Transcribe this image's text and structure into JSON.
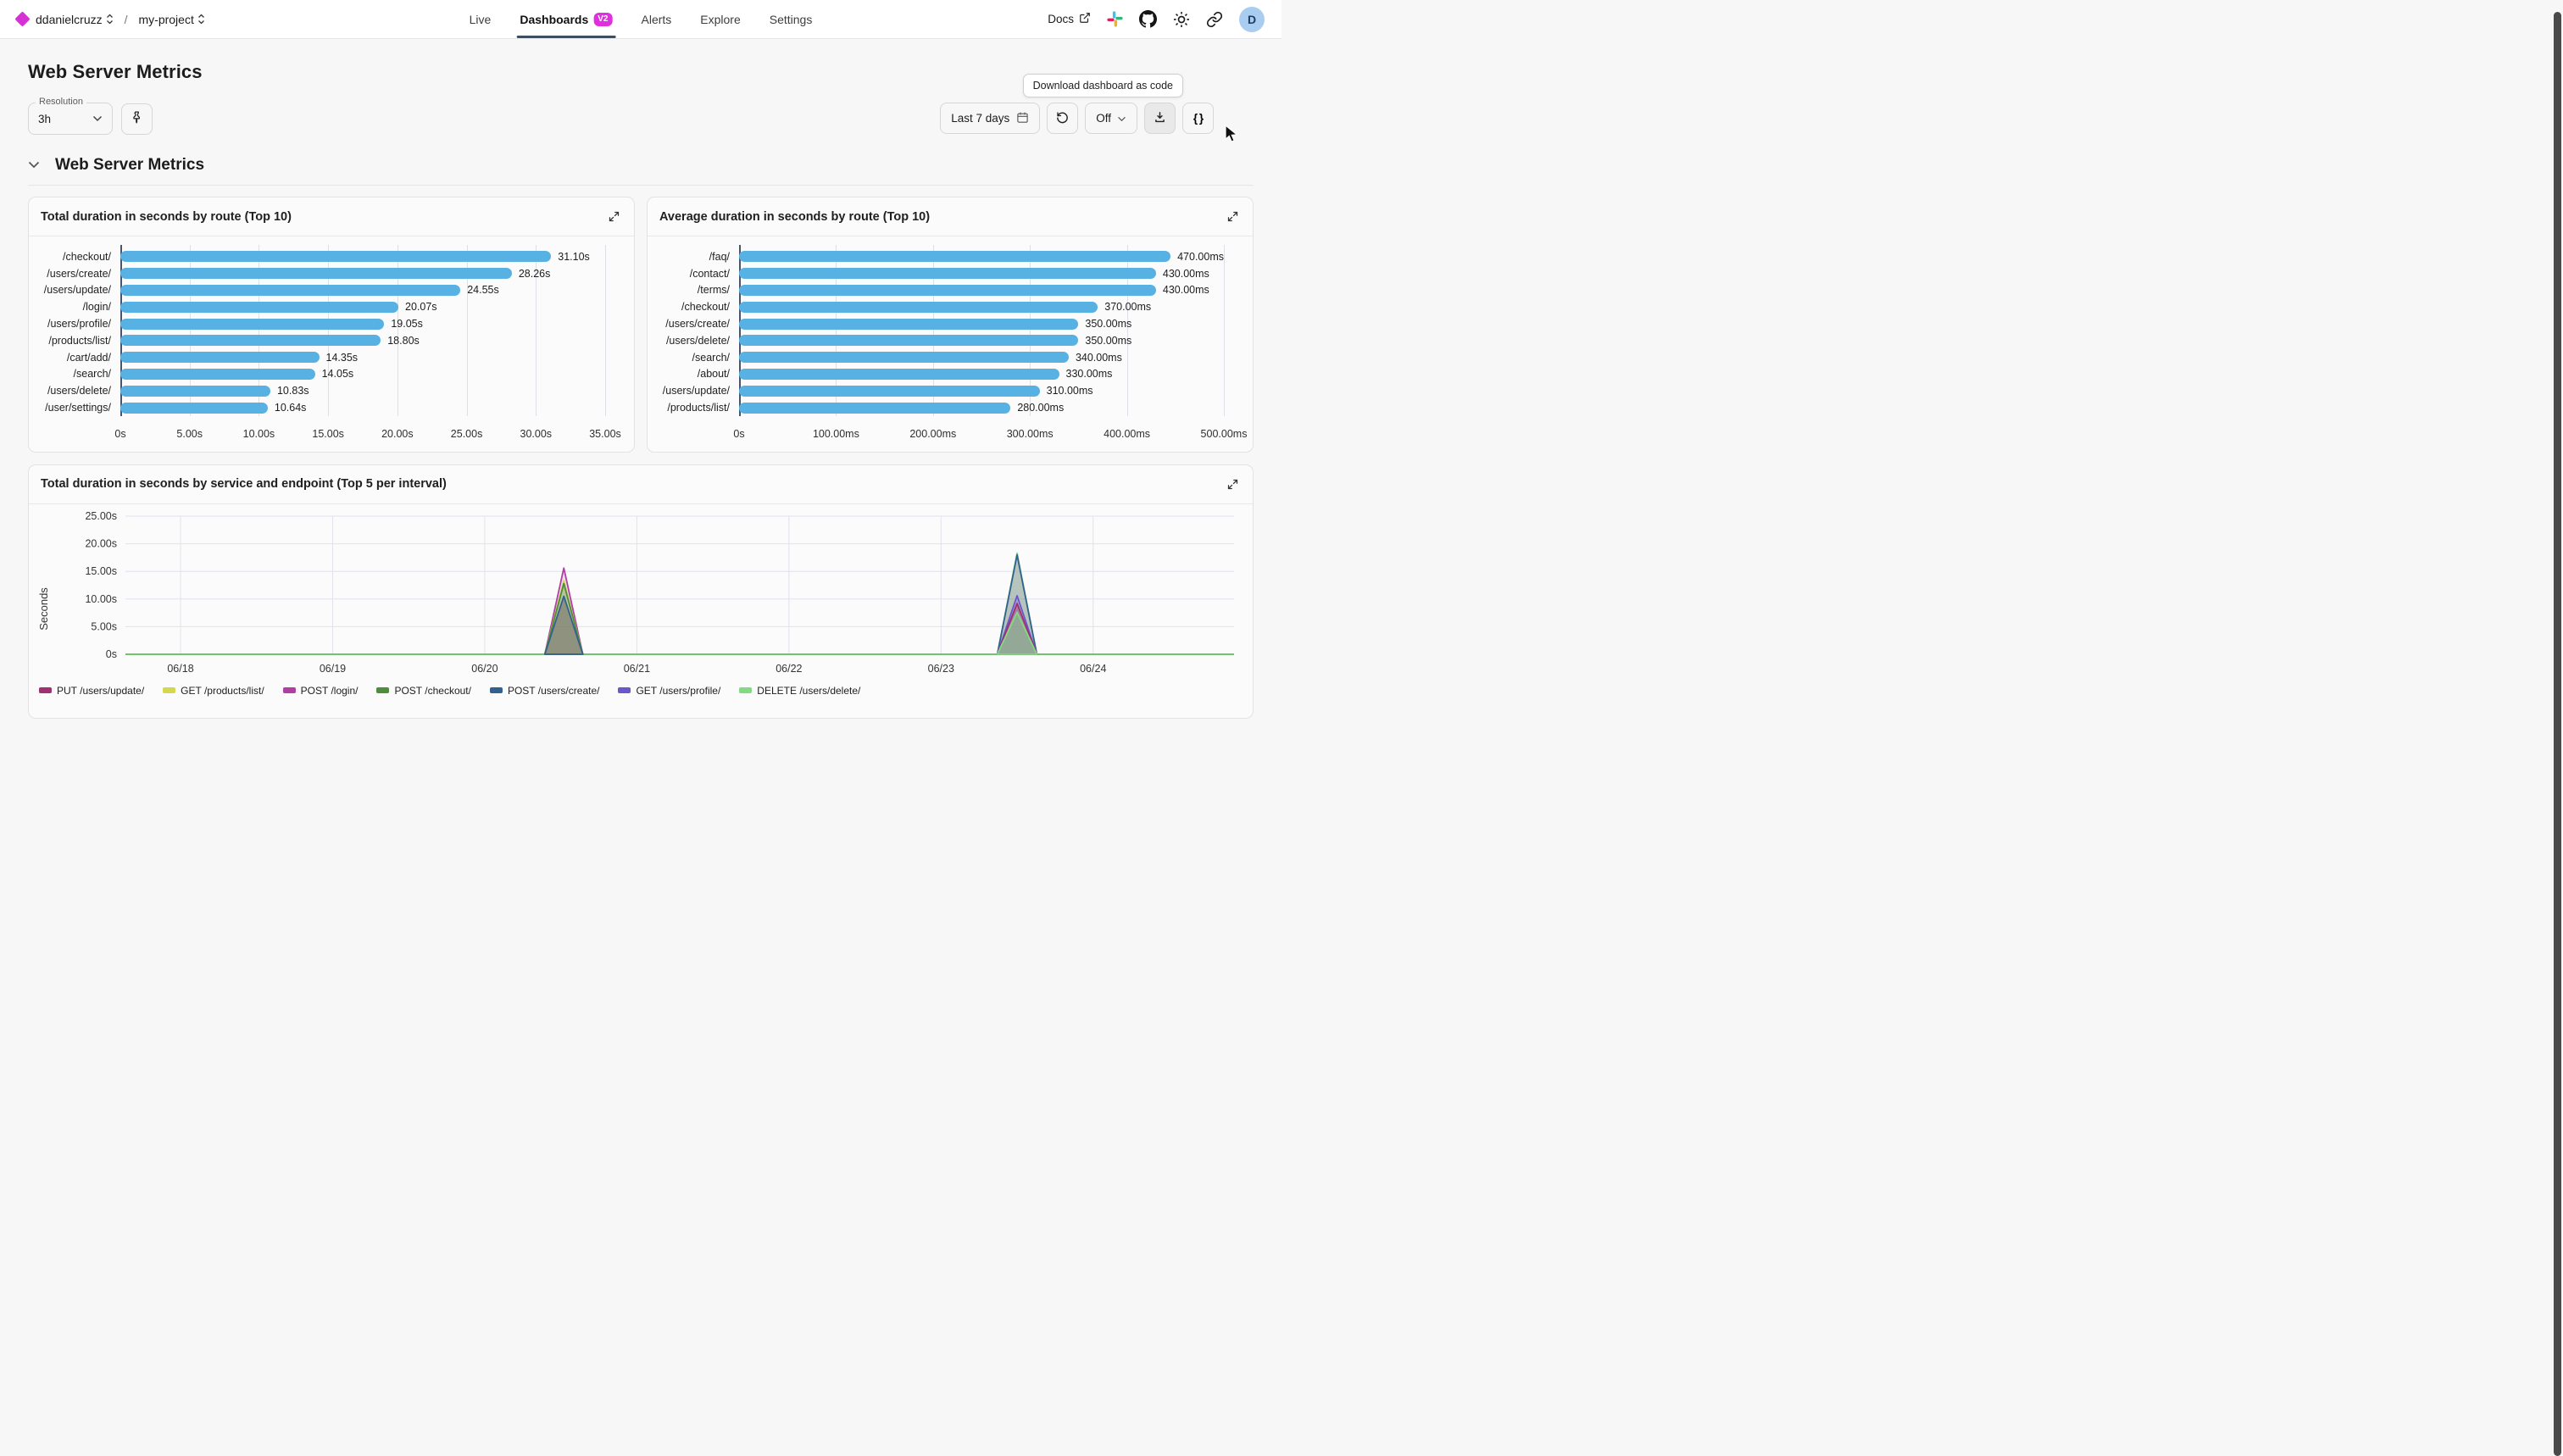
{
  "topbar": {
    "org": "ddanielcruzz",
    "separator": "/",
    "project": "my-project",
    "nav": [
      {
        "label": "Live",
        "active": false
      },
      {
        "label": "Dashboards",
        "active": true,
        "badge": "V2"
      },
      {
        "label": "Alerts",
        "active": false
      },
      {
        "label": "Explore",
        "active": false
      },
      {
        "label": "Settings",
        "active": false
      }
    ],
    "docs_label": "Docs",
    "avatar_initial": "D",
    "badge_color": "#e02ee0"
  },
  "page": {
    "title": "Web Server Metrics"
  },
  "controls": {
    "resolution_label": "Resolution",
    "resolution_value": "3h",
    "time_range": "Last 7 days",
    "refresh_value": "Off",
    "braces_label": "{ }",
    "tooltip": "Download dashboard as code"
  },
  "section": {
    "title": "Web Server Metrics"
  },
  "chart_data": [
    {
      "type": "bar",
      "orientation": "horizontal",
      "title": "Total duration in seconds by route (Top 10)",
      "categories": [
        "/checkout/",
        "/users/create/",
        "/users/update/",
        "/login/",
        "/users/profile/",
        "/products/list/",
        "/cart/add/",
        "/search/",
        "/users/delete/",
        "/user/settings/"
      ],
      "values": [
        31.1,
        28.26,
        24.55,
        20.07,
        19.05,
        18.8,
        14.35,
        14.05,
        10.83,
        10.64
      ],
      "value_labels": [
        "31.10s",
        "28.26s",
        "24.55s",
        "20.07s",
        "19.05s",
        "18.80s",
        "14.35s",
        "14.05s",
        "10.83s",
        "10.64s"
      ],
      "x_ticks": [
        "0s",
        "5.00s",
        "10.00s",
        "15.00s",
        "20.00s",
        "25.00s",
        "30.00s",
        "35.00s"
      ],
      "xlim": [
        0,
        35
      ],
      "bar_color": "#57b1e3",
      "grid": true
    },
    {
      "type": "bar",
      "orientation": "horizontal",
      "title": "Average duration in seconds by route (Top 10)",
      "categories": [
        "/faq/",
        "/contact/",
        "/terms/",
        "/checkout/",
        "/users/create/",
        "/users/delete/",
        "/search/",
        "/about/",
        "/users/update/",
        "/products/list/"
      ],
      "values": [
        470,
        430,
        430,
        370,
        350,
        350,
        340,
        330,
        310,
        280
      ],
      "value_labels": [
        "470.00ms",
        "430.00ms",
        "430.00ms",
        "370.00ms",
        "350.00ms",
        "350.00ms",
        "340.00ms",
        "330.00ms",
        "310.00ms",
        "280.00ms"
      ],
      "x_ticks": [
        "0s",
        "100.00ms",
        "200.00ms",
        "300.00ms",
        "400.00ms",
        "500.00ms"
      ],
      "xlim": [
        0,
        500
      ],
      "bar_color": "#57b1e3",
      "grid": true
    },
    {
      "type": "area",
      "title": "Total duration in seconds by service and endpoint (Top 5 per interval)",
      "ylabel": "Seconds",
      "y_ticks": [
        "0s",
        "5.00s",
        "10.00s",
        "15.00s",
        "20.00s",
        "25.00s"
      ],
      "y_tick_values": [
        0,
        5,
        10,
        15,
        20,
        25
      ],
      "ylim": [
        0,
        25
      ],
      "x_ticks": [
        "06/18",
        "06/19",
        "06/20",
        "06/21",
        "06/22",
        "06/23",
        "06/24"
      ],
      "grid": true,
      "legend_position": "bottom",
      "baseline_color": "#5cbd5c",
      "baseline_value": 0,
      "legend": [
        {
          "name": "PUT /users/update/",
          "color": "#a13070"
        },
        {
          "name": "GET /products/list/",
          "color": "#d5d74f"
        },
        {
          "name": "POST /login/",
          "color": "#b03fa3"
        },
        {
          "name": "POST /checkout/",
          "color": "#4e8c3e"
        },
        {
          "name": "POST /users/create/",
          "color": "#33618f"
        },
        {
          "name": "GET /users/profile/",
          "color": "#6d55cc"
        },
        {
          "name": "DELETE /users/delete/",
          "color": "#82db82"
        }
      ],
      "spikes": [
        {
          "x_label": "06/20 ~12:00",
          "day_offset": 2.52,
          "half_width_days": 0.125,
          "layers": [
            {
              "series": "POST /login/",
              "peak_s": 15.6,
              "color": "#b03fa3",
              "fill": "rgba(176,63,163,0.16)"
            },
            {
              "series": "GET /products/list/",
              "peak_s": 13.3,
              "color": "#d5d74f",
              "fill": "rgba(213,215,79,0.28)"
            },
            {
              "series": "POST /checkout/",
              "peak_s": 12.8,
              "color": "#4e8c3e",
              "fill": "rgba(78,140,62,0.28)"
            },
            {
              "series": "POST /users/create/",
              "peak_s": 10.5,
              "color": "#33618f",
              "fill": "rgba(95,95,100,0.5)"
            }
          ]
        },
        {
          "x_label": "06/23 ~12:00",
          "day_offset": 5.5,
          "half_width_days": 0.13,
          "layers": [
            {
              "series": "DELETE /users/delete/",
              "peak_s": 18.3,
              "color": "#82db82",
              "fill": "rgba(130,219,130,0.14)"
            },
            {
              "series": "POST /users/create/",
              "peak_s": 18.0,
              "color": "#33618f",
              "fill": "rgba(100,115,120,0.38)"
            },
            {
              "series": "GET /users/profile/",
              "peak_s": 10.6,
              "color": "#6d55cc",
              "fill": "rgba(109,85,204,0.28)"
            },
            {
              "series": "PUT /users/update/",
              "peak_s": 9.2,
              "color": "#a13070",
              "fill": "rgba(161,48,112,0.32)"
            },
            {
              "series": "DELETE /users/delete/",
              "peak_s": 7.6,
              "color": "#82db82",
              "fill": "rgba(130,219,130,0.45)"
            }
          ]
        }
      ]
    }
  ]
}
